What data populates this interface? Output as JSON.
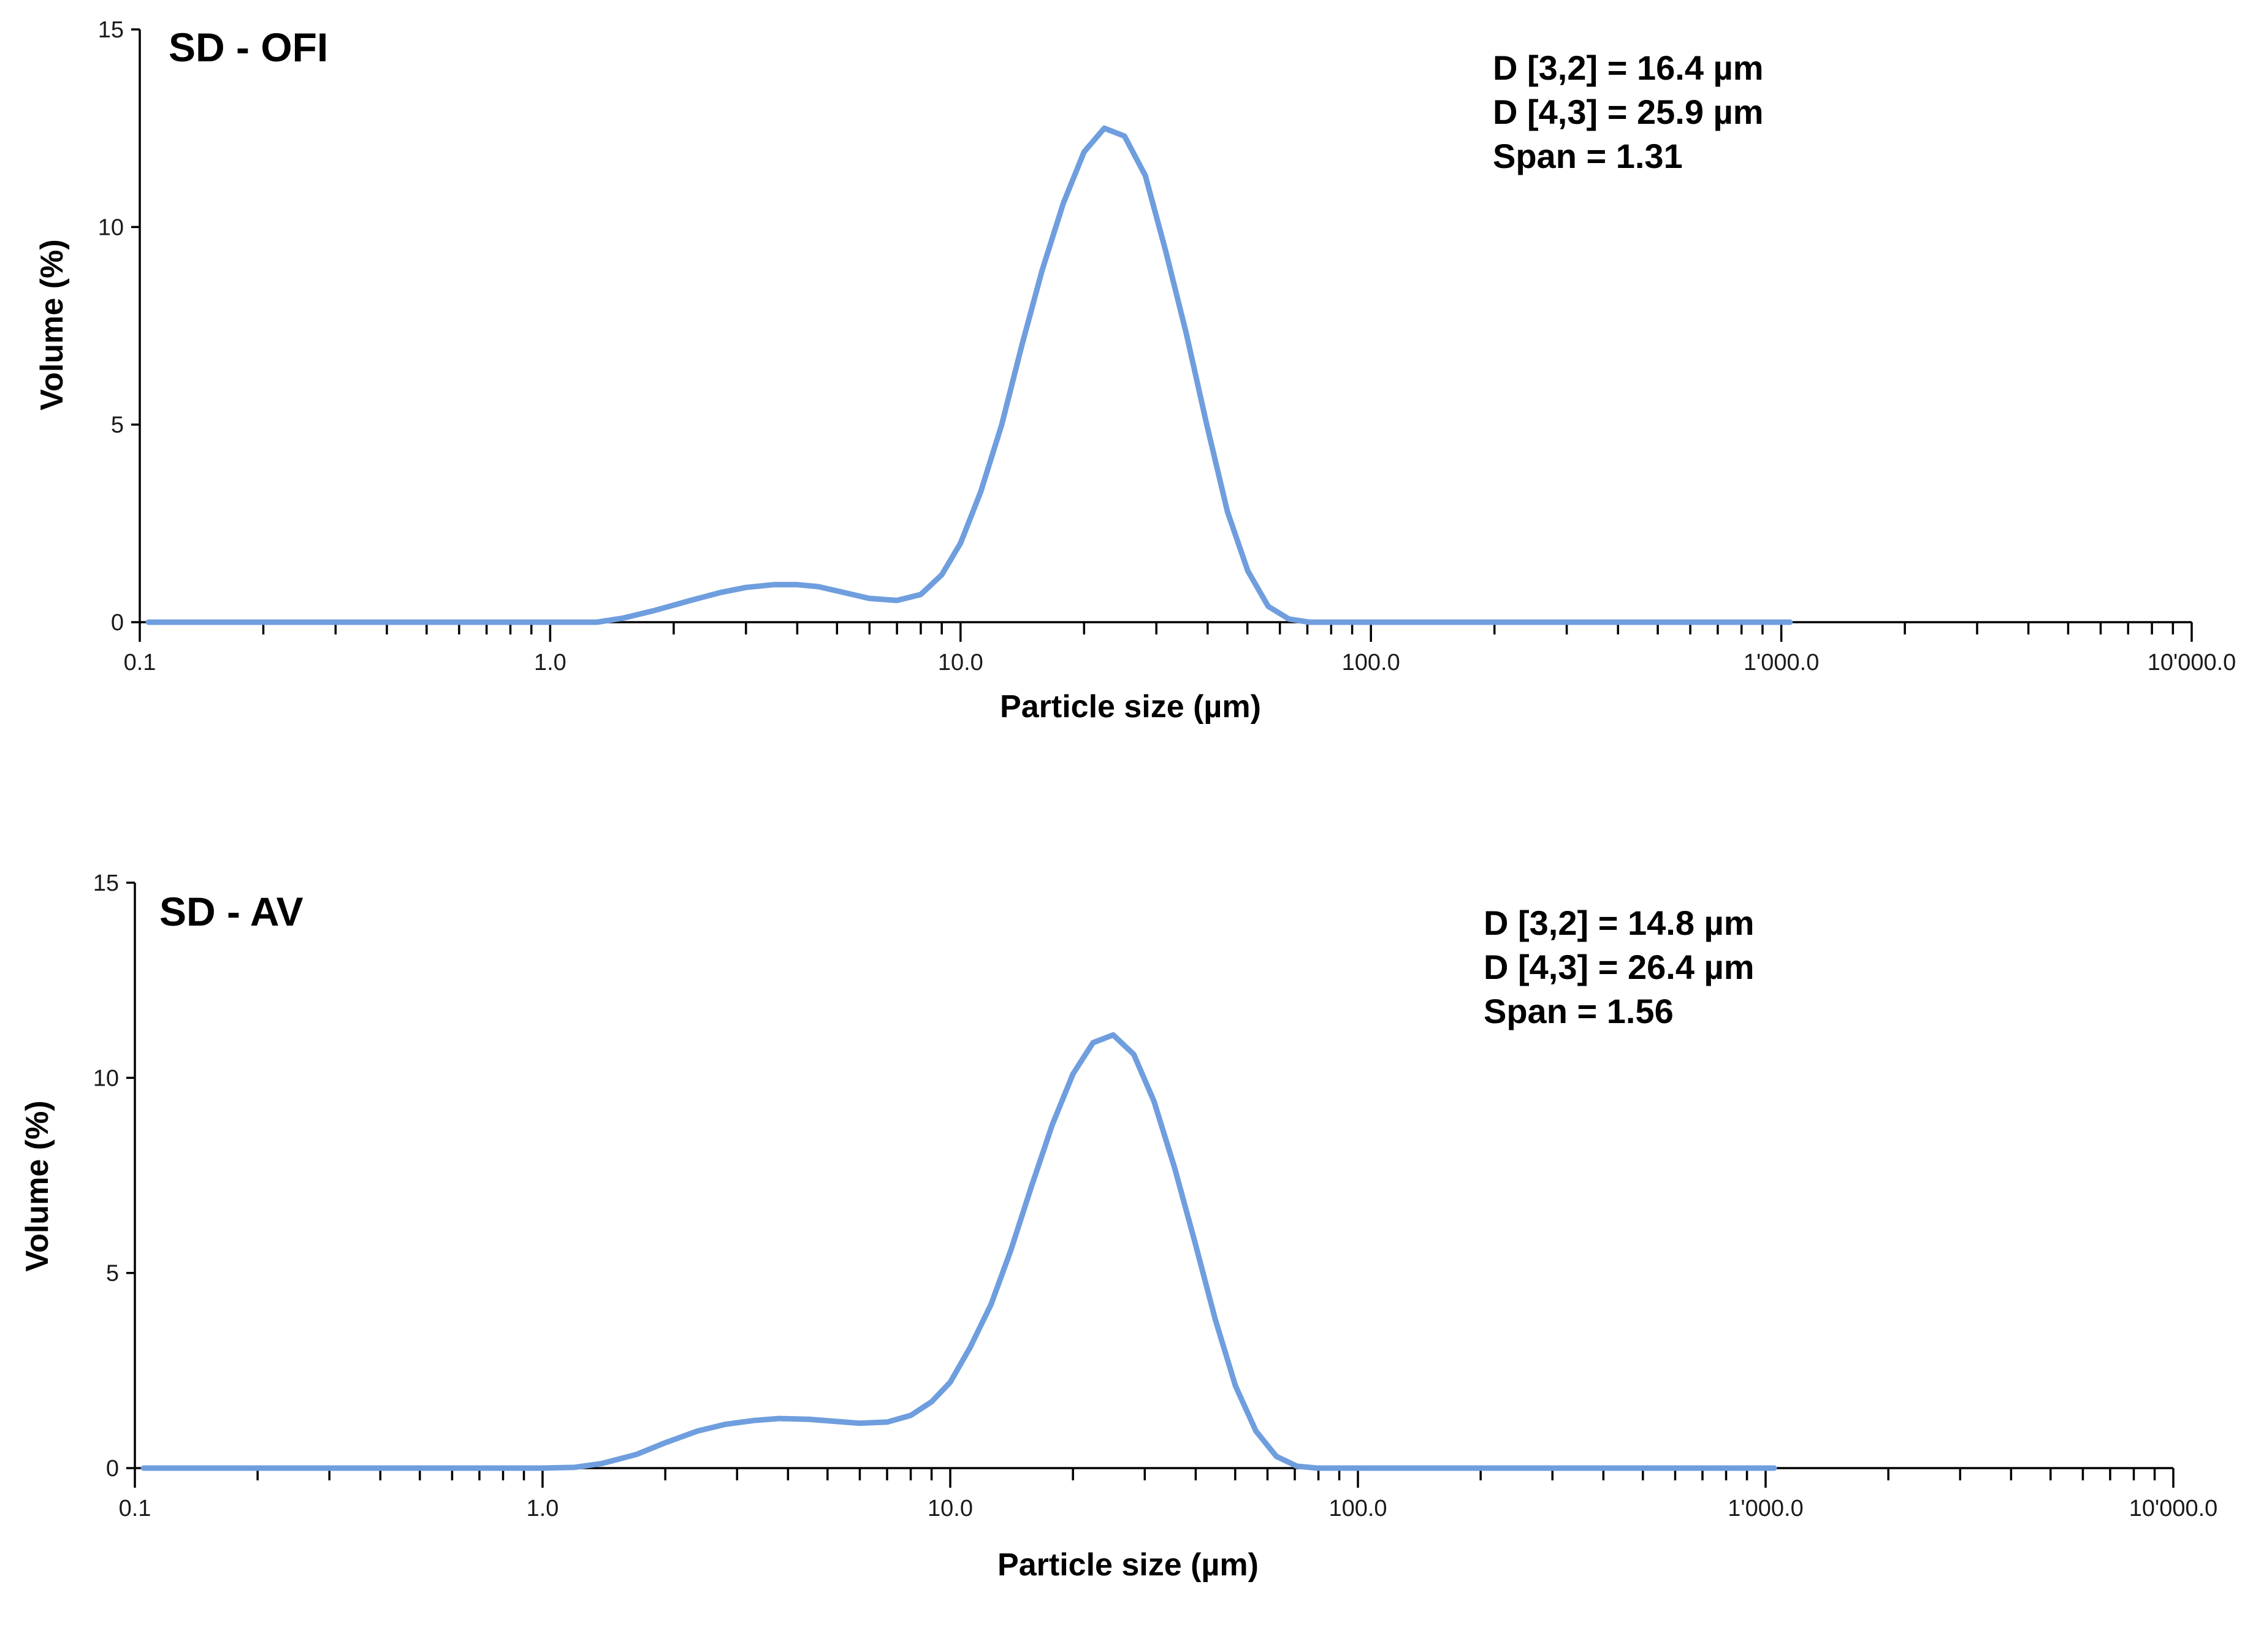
{
  "chart_data": [
    {
      "type": "line",
      "title": "SD - OFI",
      "xlabel": "Particle size (µm)",
      "ylabel": "Volume (%)",
      "xscale": "log",
      "xlim": [
        0.1,
        10000
      ],
      "ylim": [
        0,
        15
      ],
      "xticks": [
        0.1,
        1,
        10,
        100,
        1000,
        10000
      ],
      "xtick_labels": [
        "0.1",
        "1.0",
        "10.0",
        "100.0",
        "1'000.0",
        "10'000.0"
      ],
      "yticks": [
        0,
        5,
        10,
        15
      ],
      "ytick_labels": [
        "0",
        "5",
        "10",
        "15"
      ],
      "line_color": "#6f9ede",
      "annotations": [
        "D [3,2] = 16.4 µm",
        "D [4,3] = 25.9 µm",
        "Span = 1.31"
      ],
      "series": [
        {
          "name": "SD - OFI",
          "x": [
            0.105,
            0.3,
            1.0,
            1.3,
            1.5,
            1.8,
            2.2,
            2.6,
            3.0,
            3.5,
            4.0,
            4.5,
            5.2,
            6.0,
            7.0,
            8.0,
            9.0,
            10.0,
            11.2,
            12.6,
            14.1,
            15.8,
            17.8,
            20.0,
            22.4,
            25.1,
            28.2,
            31.6,
            35.5,
            39.8,
            44.7,
            50.1,
            56.2,
            63.1,
            70.8,
            79.4,
            90.0,
            200.0,
            1050.0
          ],
          "y": [
            0.0,
            0.0,
            0.0,
            0.0,
            0.1,
            0.3,
            0.55,
            0.75,
            0.88,
            0.95,
            0.95,
            0.9,
            0.75,
            0.6,
            0.55,
            0.7,
            1.2,
            2.0,
            3.3,
            5.0,
            7.0,
            8.9,
            10.6,
            11.9,
            12.5,
            12.3,
            11.3,
            9.4,
            7.3,
            5.0,
            2.8,
            1.3,
            0.4,
            0.08,
            0.0,
            0.0,
            0.0,
            0.0,
            0.0
          ]
        }
      ]
    },
    {
      "type": "line",
      "title": "SD - AV",
      "xlabel": "Particle size (µm)",
      "ylabel": "Volume (%)",
      "xscale": "log",
      "xlim": [
        0.1,
        10000
      ],
      "ylim": [
        0,
        15
      ],
      "xticks": [
        0.1,
        1,
        10,
        100,
        1000,
        10000
      ],
      "xtick_labels": [
        "0.1",
        "1.0",
        "10.0",
        "100.0",
        "1'000.0",
        "10'000.0"
      ],
      "yticks": [
        0,
        5,
        10,
        15
      ],
      "ytick_labels": [
        "0",
        "5",
        "10",
        "15"
      ],
      "line_color": "#6f9ede",
      "annotations": [
        "D [3,2] = 14.8 µm",
        "D [4,3] = 26.4 µm",
        "Span = 1.56"
      ],
      "series": [
        {
          "name": "SD - AV",
          "x": [
            0.105,
            0.3,
            1.0,
            1.2,
            1.4,
            1.7,
            2.0,
            2.4,
            2.8,
            3.3,
            3.8,
            4.5,
            5.2,
            6.0,
            7.0,
            8.0,
            9.0,
            10.0,
            11.2,
            12.6,
            14.1,
            15.8,
            17.8,
            20.0,
            22.4,
            25.1,
            28.2,
            31.6,
            35.5,
            39.8,
            44.7,
            50.1,
            56.2,
            63.1,
            70.8,
            79.4,
            90.0,
            200.0,
            1050.0
          ],
          "y": [
            0.0,
            0.0,
            0.0,
            0.02,
            0.12,
            0.35,
            0.65,
            0.95,
            1.12,
            1.22,
            1.27,
            1.25,
            1.2,
            1.15,
            1.18,
            1.35,
            1.7,
            2.2,
            3.1,
            4.2,
            5.6,
            7.2,
            8.8,
            10.1,
            10.9,
            11.1,
            10.6,
            9.4,
            7.7,
            5.8,
            3.8,
            2.1,
            0.95,
            0.3,
            0.05,
            0.0,
            0.0,
            0.0,
            0.0
          ]
        }
      ]
    }
  ]
}
